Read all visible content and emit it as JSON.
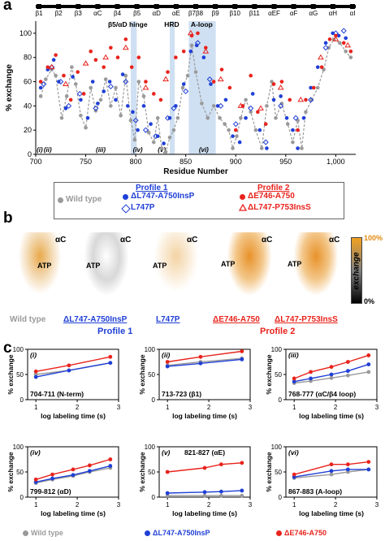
{
  "panels": {
    "a": "a",
    "b": "b",
    "c": "c"
  },
  "colors": {
    "wild_type": "#9a9a9a",
    "profile1": "#1f3fd6",
    "profile2": "#e8231c",
    "highlight": "#cfe0f2"
  },
  "panel_a": {
    "secondary_structure": [
      "β1",
      "β2",
      "β3",
      "αC",
      "β4",
      "β5",
      "αD",
      "αE",
      "β7β8",
      "β9",
      "β10",
      "β11",
      "αEF",
      "αF",
      "αG",
      "αH",
      "αI"
    ],
    "annotations": [
      "β5/αD hinge",
      "HRD",
      "A-loop"
    ],
    "regions": [
      "(i)",
      "(ii)",
      "(iii)",
      "(iv)",
      "(v)",
      "(vi)"
    ],
    "legend": {
      "profile1_title": "Profile 1",
      "profile2_title": "Profile 2",
      "wild_type": "Wild type",
      "l747_a750": "ΔL747-A750InsP",
      "l747p": "L747P",
      "e746_a750": "ΔE746-A750",
      "l747_p753": "ΔL747-P753InsS"
    }
  },
  "panel_b": {
    "ac_label": "αC",
    "atp_label": "ATP",
    "colorbar_top": "100%",
    "colorbar_bottom": "0%",
    "colorbar_title": "exchange",
    "labels": {
      "wild_type": "Wild type",
      "l747_a750": "ΔL747-A750InsP",
      "l747p": "L747P",
      "e746_a750": "ΔE746-A750",
      "l747_p753": "ΔL747-P753InsS"
    },
    "profile1": "Profile 1",
    "profile2": "Profile 2"
  },
  "panel_c_legend": {
    "wild_type": "Wild type",
    "l747_a750": "ΔL747-A750InsP",
    "e746_a750": "ΔE746-A750"
  },
  "chart_data": [
    {
      "type": "scatter",
      "xlabel": "Residue Number",
      "ylabel": "% exchange",
      "xlim": [
        700,
        1020
      ],
      "ylim": [
        0,
        110
      ],
      "xticks": [
        700,
        750,
        800,
        850,
        900,
        950,
        1000
      ],
      "xtick_labels": [
        "700",
        "750",
        "800",
        "850",
        "900",
        "950",
        "1,000"
      ],
      "yticks": [
        0,
        20,
        40,
        60,
        80,
        100
      ],
      "highlight_ranges": [
        [
          795,
          801
        ],
        [
          834,
          839
        ],
        [
          853,
          880
        ]
      ],
      "series": [
        {
          "name": "Wild type",
          "x": [
            705,
            710,
            716,
            720,
            726,
            731,
            736,
            740,
            745,
            750,
            755,
            760,
            765,
            770,
            775,
            780,
            785,
            790,
            795,
            799,
            803,
            808,
            813,
            818,
            822,
            826,
            830,
            834,
            838,
            842,
            847,
            852,
            856,
            860,
            866,
            872,
            878,
            884,
            889,
            893,
            897,
            901,
            905,
            910,
            915,
            920,
            926,
            931,
            936,
            940,
            946,
            952,
            957,
            962,
            966,
            970,
            976,
            982,
            988,
            993,
            998,
            1004,
            1010,
            1015
          ],
          "y": [
            48,
            62,
            70,
            65,
            30,
            48,
            72,
            58,
            32,
            22,
            55,
            36,
            45,
            62,
            40,
            55,
            32,
            65,
            28,
            12,
            60,
            48,
            18,
            10,
            30,
            5,
            2,
            14,
            20,
            30,
            55,
            65,
            90,
            68,
            42,
            30,
            40,
            30,
            25,
            20,
            5,
            15,
            30,
            45,
            35,
            20,
            5,
            40,
            60,
            30,
            42,
            25,
            10,
            28,
            5,
            35,
            45,
            55,
            70,
            88,
            95,
            92,
            85,
            80
          ]
        },
        {
          "name": "ΔL747-A750InsP",
          "x": [
            705,
            712,
            718,
            723,
            730,
            737,
            745,
            752,
            757,
            762,
            768,
            774,
            780,
            787,
            792,
            797,
            802,
            808,
            815,
            822,
            828,
            834,
            840,
            848,
            855,
            861,
            868,
            875,
            882,
            890,
            897,
            904,
            910,
            917,
            924,
            931,
            938,
            945,
            951,
            957,
            962,
            968,
            975,
            982,
            990,
            997,
            1003,
            1010
          ],
          "y": [
            55,
            70,
            78,
            60,
            38,
            64,
            45,
            30,
            60,
            42,
            52,
            60,
            45,
            66,
            40,
            35,
            20,
            40,
            25,
            15,
            9,
            30,
            40,
            58,
            85,
            90,
            80,
            58,
            40,
            45,
            15,
            10,
            30,
            50,
            20,
            5,
            45,
            48,
            30,
            20,
            5,
            30,
            55,
            72,
            92,
            100,
            98,
            96
          ]
        },
        {
          "name": "L747P",
          "x": [
            708,
            716,
            725,
            733,
            744,
            760,
            775,
            790,
            800,
            810,
            820,
            832,
            838,
            850,
            862,
            874,
            885,
            900,
            915,
            930,
            945,
            960,
            975,
            990,
            1000,
            1008
          ],
          "y": [
            58,
            72,
            60,
            40,
            50,
            38,
            56,
            60,
            28,
            20,
            15,
            30,
            38,
            52,
            92,
            62,
            40,
            25,
            38,
            10,
            40,
            30,
            45,
            88,
            100,
            102
          ]
        },
        {
          "name": "ΔE746-A750",
          "x": [
            705,
            712,
            720,
            728,
            735,
            742,
            748,
            755,
            760,
            768,
            775,
            782,
            790,
            796,
            803,
            810,
            818,
            825,
            832,
            840,
            848,
            856,
            862,
            870,
            878,
            886,
            894,
            900,
            907,
            915,
            922,
            930,
            938,
            946,
            954,
            962,
            970,
            978,
            986,
            994,
            1000,
            1008,
            1015
          ],
          "y": [
            60,
            72,
            82,
            65,
            45,
            68,
            50,
            85,
            78,
            72,
            88,
            80,
            95,
            72,
            80,
            60,
            50,
            45,
            68,
            80,
            85,
            98,
            100,
            88,
            60,
            70,
            55,
            20,
            40,
            65,
            35,
            25,
            58,
            60,
            45,
            20,
            45,
            55,
            72,
            95,
            98,
            92,
            85
          ]
        },
        {
          "name": "ΔL747-P753InsS",
          "x": [
            716,
            730,
            750,
            770,
            790,
            810,
            830,
            855,
            870,
            885,
            905,
            925,
            945,
            965,
            985,
            1000,
            1012
          ],
          "y": [
            72,
            58,
            75,
            80,
            88,
            55,
            62,
            100,
            85,
            62,
            40,
            38,
            55,
            45,
            80,
            95,
            90
          ]
        }
      ]
    },
    {
      "type": "line",
      "title": "704-711 (N-term)",
      "tag": "(i)",
      "xlabel": "log labeling time (s)",
      "ylabel": "% exchange",
      "x": [
        1,
        1.8,
        2.8
      ],
      "xlim": [
        0.8,
        3
      ],
      "ylim": [
        0,
        100
      ],
      "yticks": [
        0,
        50,
        100
      ],
      "xticks": [
        1,
        2,
        3
      ],
      "series": [
        {
          "name": "Wild type",
          "values": [
            50,
            58,
            73
          ]
        },
        {
          "name": "ΔL747-A750InsP",
          "values": [
            45,
            58,
            73
          ]
        },
        {
          "name": "ΔE746-A750",
          "values": [
            56,
            68,
            85
          ]
        }
      ]
    },
    {
      "type": "line",
      "title": "713-723 (β1)",
      "tag": "(ii)",
      "xlabel": "log labeling time (s)",
      "ylabel": "% exchange",
      "x": [
        1,
        1.8,
        2.8
      ],
      "xlim": [
        0.8,
        3
      ],
      "ylim": [
        0,
        100
      ],
      "yticks": [
        0,
        50,
        100
      ],
      "xticks": [
        1,
        2,
        3
      ],
      "series": [
        {
          "name": "Wild type",
          "values": [
            68,
            75,
            82
          ]
        },
        {
          "name": "ΔL747-A750InsP",
          "values": [
            66,
            72,
            80
          ]
        },
        {
          "name": "ΔE746-A750",
          "values": [
            75,
            85,
            96
          ]
        }
      ]
    },
    {
      "type": "line",
      "title": "768-777 (αC/β4 loop)",
      "tag": "(iii)",
      "xlabel": "log labeling time (s)",
      "ylabel": "% exchange",
      "x": [
        1,
        1.4,
        1.9,
        2.3,
        2.8
      ],
      "xlim": [
        0.8,
        3
      ],
      "ylim": [
        0,
        100
      ],
      "yticks": [
        0,
        50,
        100
      ],
      "xticks": [
        1,
        2,
        3
      ],
      "series": [
        {
          "name": "Wild type",
          "values": [
            33,
            37,
            43,
            48,
            55
          ]
        },
        {
          "name": "ΔL747-A750InsP",
          "values": [
            36,
            42,
            50,
            57,
            70
          ]
        },
        {
          "name": "ΔE746-A750",
          "values": [
            42,
            55,
            65,
            75,
            88
          ]
        }
      ]
    },
    {
      "type": "line",
      "title": "799-812 (αD)",
      "tag": "(iv)",
      "xlabel": "log labeling time (s)",
      "ylabel": "% exchange",
      "x": [
        1,
        1.4,
        1.9,
        2.3,
        2.8
      ],
      "xlim": [
        0.8,
        3
      ],
      "ylim": [
        0,
        100
      ],
      "yticks": [
        0,
        50,
        100
      ],
      "xticks": [
        1,
        2,
        3
      ],
      "series": [
        {
          "name": "Wild type",
          "values": [
            28,
            35,
            42,
            50,
            58
          ]
        },
        {
          "name": "ΔL747-A750InsP",
          "values": [
            30,
            37,
            44,
            52,
            62
          ]
        },
        {
          "name": "ΔE746-A750",
          "values": [
            35,
            45,
            55,
            63,
            75
          ]
        }
      ]
    },
    {
      "type": "line",
      "title": "821-827 (αE)",
      "tag": "(v)",
      "xlabel": "log labeling time (s)",
      "ylabel": "% exchange",
      "x": [
        1,
        1.9,
        2.3,
        2.8
      ],
      "xlim": [
        0.8,
        3
      ],
      "ylim": [
        0,
        100
      ],
      "yticks": [
        0,
        50,
        100
      ],
      "xticks": [
        1,
        2,
        3
      ],
      "series": [
        {
          "name": "Wild type",
          "values": [
            3,
            3,
            3,
            3
          ]
        },
        {
          "name": "ΔL747-A750InsP",
          "values": [
            8,
            10,
            11,
            13
          ]
        },
        {
          "name": "ΔE746-A750",
          "values": [
            50,
            58,
            65,
            68
          ]
        }
      ]
    },
    {
      "type": "line",
      "title": "867-883 (A-loop)",
      "tag": "(vi)",
      "xlabel": "log labeling time (s)",
      "ylabel": "% exchange",
      "x": [
        1,
        1.9,
        2.3,
        2.8
      ],
      "xlim": [
        0.8,
        3
      ],
      "ylim": [
        0,
        100
      ],
      "yticks": [
        0,
        50,
        100
      ],
      "xticks": [
        1,
        2,
        3
      ],
      "series": [
        {
          "name": "Wild type",
          "values": [
            38,
            45,
            50,
            55
          ]
        },
        {
          "name": "ΔL747-A750InsP",
          "values": [
            40,
            52,
            55,
            55
          ]
        },
        {
          "name": "ΔE746-A750",
          "values": [
            45,
            65,
            65,
            70
          ]
        }
      ]
    }
  ]
}
